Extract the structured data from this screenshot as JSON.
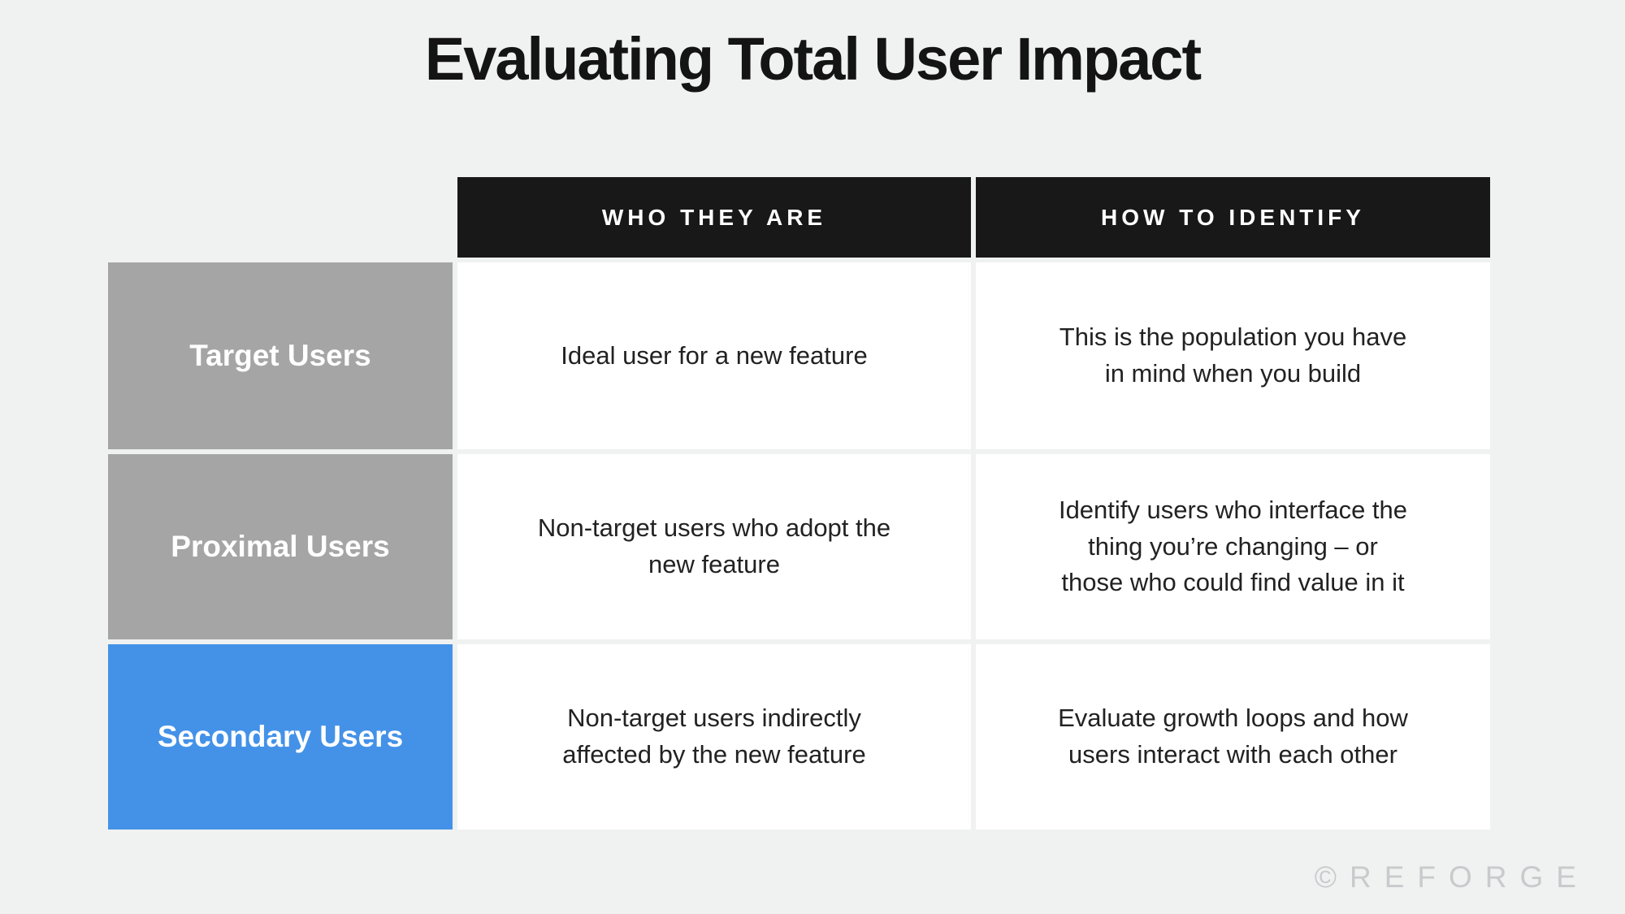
{
  "title": "Evaluating Total User Impact",
  "watermark": "©REFORGE",
  "colors": {
    "page_background": "#f0f1f1",
    "header_background": "#181818",
    "header_text": "#ffffff",
    "gray_label_background": "#a5a5a5",
    "blue_label_background": "#4492e8",
    "label_text": "#ffffff",
    "cell_background": "#ffffff",
    "cell_text": "#222222",
    "watermark_text": "#c9cacc"
  },
  "table": {
    "column_headers": [
      "WHO THEY ARE",
      "HOW TO IDENTIFY"
    ],
    "rows": [
      {
        "label": "Target Users",
        "label_color": "#a5a5a5",
        "who_they_are": "Ideal user for a new feature",
        "how_to_identify": "This is the population you have\nin mind when you build"
      },
      {
        "label": "Proximal Users",
        "label_color": "#a5a5a5",
        "who_they_are": "Non-target users who adopt the\nnew feature",
        "how_to_identify": "Identify users who interface the\nthing you’re changing – or\nthose who could find value in it"
      },
      {
        "label": "Secondary Users",
        "label_color": "#4492e8",
        "who_they_are": "Non-target users indirectly\naffected by the new feature",
        "how_to_identify": "Evaluate growth loops and how\nusers interact with each other"
      }
    ]
  }
}
